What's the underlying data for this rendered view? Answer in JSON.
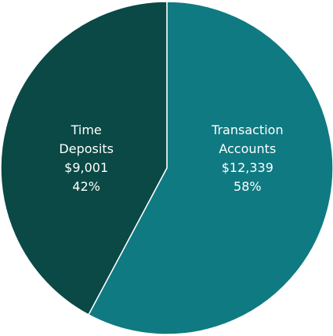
{
  "chart_data": {
    "type": "pie",
    "categories": [
      "Transaction Accounts",
      "Time Deposits"
    ],
    "values": [
      12339,
      9001
    ],
    "value_labels": [
      "$12,339",
      "$9,001"
    ],
    "percent_labels": [
      "58%",
      "42%"
    ],
    "colors": [
      "#0f7a82",
      "#0a4945"
    ]
  }
}
